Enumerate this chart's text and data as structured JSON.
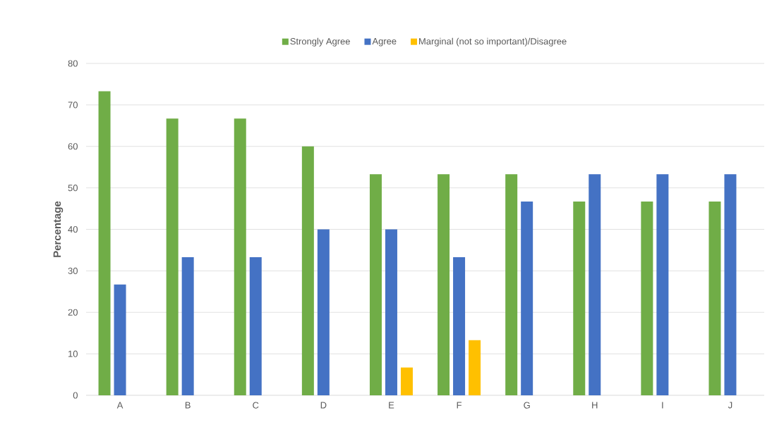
{
  "chart_data": {
    "type": "bar",
    "ylabel": "Percentage",
    "categories": [
      "A",
      "B",
      "C",
      "D",
      "E",
      "F",
      "G",
      "H",
      "I",
      "J"
    ],
    "series": [
      {
        "name": "Strongly Agree",
        "color": "#70ad47",
        "values": [
          73.3,
          66.7,
          66.7,
          60,
          53.3,
          53.3,
          53.3,
          46.7,
          46.7,
          46.7
        ]
      },
      {
        "name": "Agree",
        "color": "#4472c4",
        "values": [
          26.7,
          33.3,
          33.3,
          40,
          40,
          33.3,
          46.7,
          53.3,
          53.3,
          53.3
        ]
      },
      {
        "name": "Marginal (not so important)/Disagree",
        "color": "#ffc000",
        "values": [
          null,
          null,
          null,
          null,
          6.7,
          13.3,
          null,
          null,
          null,
          null
        ]
      }
    ],
    "ylim": [
      0,
      80
    ],
    "yticks": [
      0,
      10,
      20,
      30,
      40,
      50,
      60,
      70,
      80
    ],
    "grid": "y",
    "legend": "top"
  }
}
